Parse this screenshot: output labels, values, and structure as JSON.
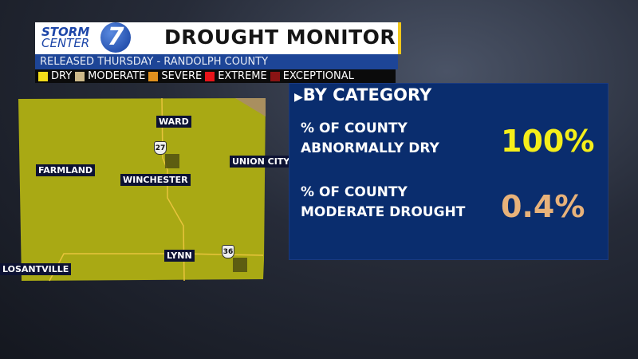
{
  "header": {
    "logo_text": [
      "STORM",
      "CENTER",
      "7"
    ],
    "title": "DROUGHT MONITOR",
    "subtitle": "RELEASED THURSDAY - RANDOLPH COUNTY"
  },
  "legend": [
    {
      "label": "DRY",
      "color": "#f2dc1a"
    },
    {
      "label": "MODERATE",
      "color": "#cdb98a"
    },
    {
      "label": "SEVERE",
      "color": "#e0901e"
    },
    {
      "label": "EXTREME",
      "color": "#e8141a"
    },
    {
      "label": "EXCEPTIONAL",
      "color": "#8a1414"
    }
  ],
  "map": {
    "fill_color": "#a9a914",
    "moderate_color": "#a98f5f",
    "places": [
      "WARD",
      "FARMLAND",
      "WINCHESTER",
      "UNION CITY",
      "LYNN",
      "LOSANTVILLE"
    ],
    "routes": [
      "27",
      "36"
    ]
  },
  "card": {
    "heading": "BY CATEGORY",
    "rows": [
      {
        "label1": "% OF COUNTY",
        "label2": "ABNORMALLY DRY",
        "value": "100%",
        "color": "#f5ee1a"
      },
      {
        "label1": "% OF COUNTY",
        "label2": "MODERATE DROUGHT",
        "value": "0.4%",
        "color": "#e8b27a"
      }
    ]
  }
}
